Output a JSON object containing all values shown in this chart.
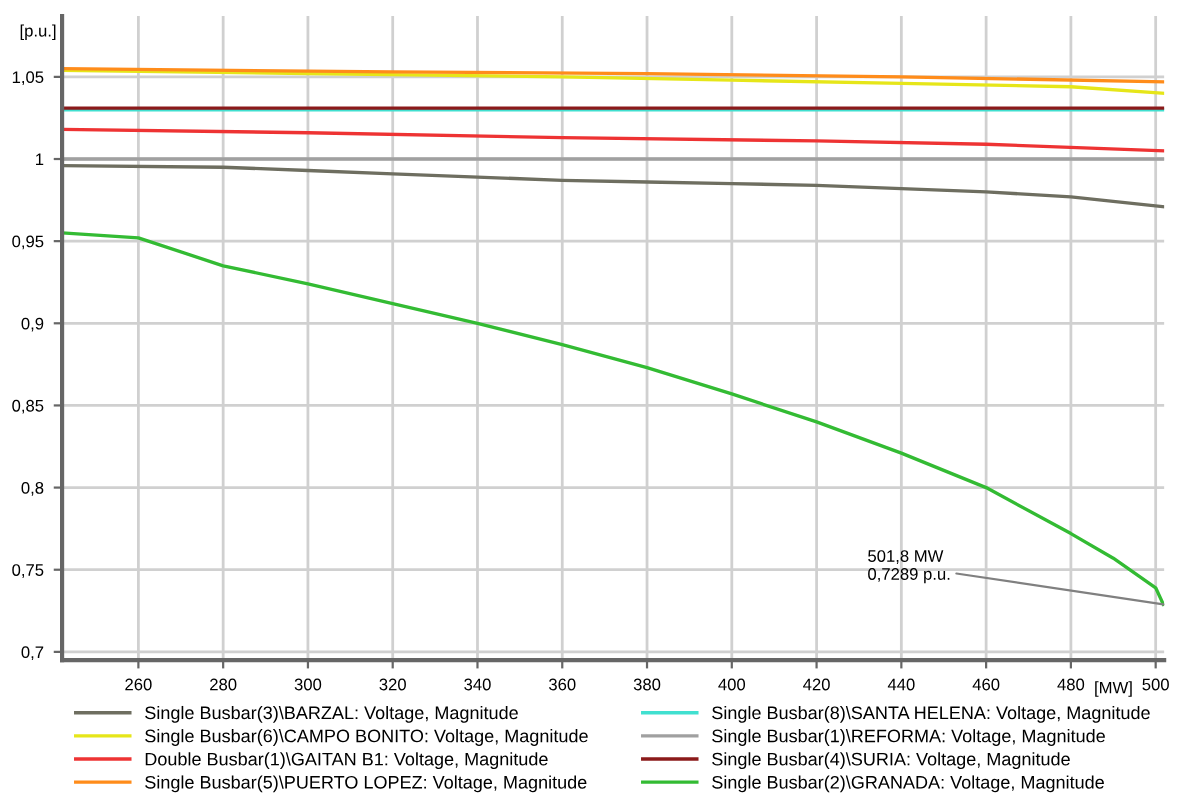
{
  "chart_data": {
    "type": "line",
    "xlabel": "[MW]",
    "ylabel": "[p.u.]",
    "xlim": [
      242,
      502
    ],
    "ylim": [
      0.695,
      1.087
    ],
    "xticks": [
      260,
      280,
      300,
      320,
      340,
      360,
      380,
      400,
      420,
      440,
      460,
      480,
      500
    ],
    "yticks": [
      {
        "value": 0.7,
        "label": "0,7"
      },
      {
        "value": 0.75,
        "label": "0,75"
      },
      {
        "value": 0.8,
        "label": "0,8"
      },
      {
        "value": 0.85,
        "label": "0,85"
      },
      {
        "value": 0.9,
        "label": "0,9"
      },
      {
        "value": 0.95,
        "label": "0,95"
      },
      {
        "value": 1,
        "label": "1"
      },
      {
        "value": 1.05,
        "label": "1,05"
      }
    ],
    "grid": true,
    "legend": "bottom",
    "marker": "none",
    "line_style": "solid",
    "annotations": [
      {
        "text": "501,8 MW\n0,7289 p.u.",
        "x": 501.8,
        "y": 0.7289
      }
    ],
    "series": [
      {
        "name": "Single Busbar(3)\\BARZAL: Voltage, Magnitude",
        "color": "#6e6e60",
        "x": [
          242,
          280,
          300,
          320,
          340,
          360,
          380,
          400,
          420,
          440,
          460,
          480,
          501.8
        ],
        "values": [
          0.996,
          0.995,
          0.993,
          0.991,
          0.989,
          0.987,
          0.986,
          0.985,
          0.984,
          0.982,
          0.98,
          0.977,
          0.971
        ]
      },
      {
        "name": "Single Busbar(6)\\CAMPO BONITO: Voltage, Magnitude",
        "color": "#e6e619",
        "x": [
          242,
          300,
          360,
          400,
          440,
          480,
          501.8
        ],
        "values": [
          1.054,
          1.052,
          1.05,
          1.048,
          1.046,
          1.044,
          1.04
        ]
      },
      {
        "name": "Double Busbar(1)\\GAITAN B1: Voltage, Magnitude",
        "color": "#ee3333",
        "x": [
          242,
          300,
          360,
          420,
          460,
          501.8
        ],
        "values": [
          1.018,
          1.016,
          1.013,
          1.011,
          1.009,
          1.005
        ]
      },
      {
        "name": "Single Busbar(5)\\PUERTO LOPEZ: Voltage, Magnitude",
        "color": "#ff8c1a",
        "x": [
          242,
          320,
          380,
          440,
          501.8
        ],
        "values": [
          1.055,
          1.053,
          1.052,
          1.05,
          1.047
        ]
      },
      {
        "name": "Single Busbar(8)\\SANTA HELENA: Voltage, Magnitude",
        "color": "#40e0d0",
        "x": [
          242,
          501.8
        ],
        "values": [
          1.03,
          1.03
        ]
      },
      {
        "name": "Single Busbar(1)\\REFORMA: Voltage, Magnitude",
        "color": "#a0a0a0",
        "x": [
          242,
          501.8
        ],
        "values": [
          1.0,
          1.0
        ]
      },
      {
        "name": "Single Busbar(4)\\SURIA: Voltage, Magnitude",
        "color": "#8b1a1a",
        "x": [
          242,
          501.8
        ],
        "values": [
          1.031,
          1.031
        ]
      },
      {
        "name": "Single Busbar(2)\\GRANADA: Voltage, Magnitude",
        "color": "#33bb33",
        "x": [
          242,
          260,
          280,
          300,
          320,
          340,
          360,
          380,
          400,
          420,
          440,
          460,
          480,
          490,
          500,
          501.8
        ],
        "values": [
          0.955,
          0.952,
          0.935,
          0.924,
          0.912,
          0.9,
          0.887,
          0.873,
          0.857,
          0.84,
          0.821,
          0.8,
          0.772,
          0.757,
          0.739,
          0.7289
        ]
      }
    ]
  }
}
